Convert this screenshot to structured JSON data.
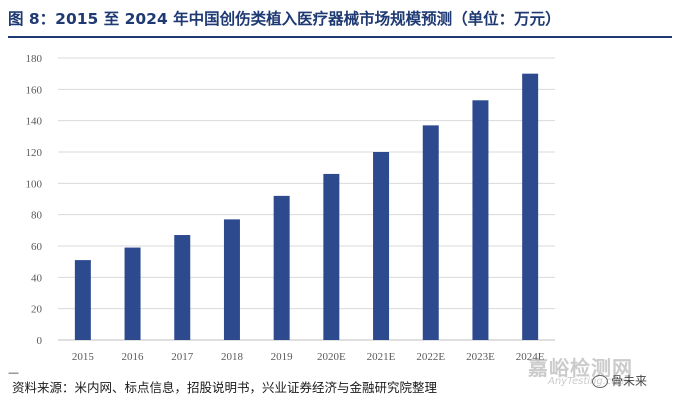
{
  "title": "图 8：2015 至 2024 年中国创伤类植入医疗器械市场规模预测（单位：万元）",
  "source": "资料来源：米内网、标点信息，招股说明书，兴业证券经济与金融研究院整理",
  "watermark": {
    "text": "嘉峪检测网",
    "sub": "AnyTesting.com",
    "account": "骨未来"
  },
  "colors": {
    "bar": "#2e4a8f",
    "title": "#1f3a73",
    "grid": "#d9d9d9"
  },
  "chart_data": {
    "type": "bar",
    "title": "图 8：2015 至 2024 年中国创伤类植入医疗器械市场规模预测（单位：万元）",
    "xlabel": "",
    "ylabel": "",
    "categories": [
      "2015",
      "2016",
      "2017",
      "2018",
      "2019",
      "2020E",
      "2021E",
      "2022E",
      "2023E",
      "2024E"
    ],
    "values": [
      51,
      59,
      67,
      77,
      92,
      106,
      120,
      137,
      153,
      170
    ],
    "ylim": [
      0,
      180
    ],
    "yticks": [
      0,
      20,
      40,
      60,
      80,
      100,
      120,
      140,
      160,
      180
    ],
    "grid": true,
    "legend": "none"
  }
}
